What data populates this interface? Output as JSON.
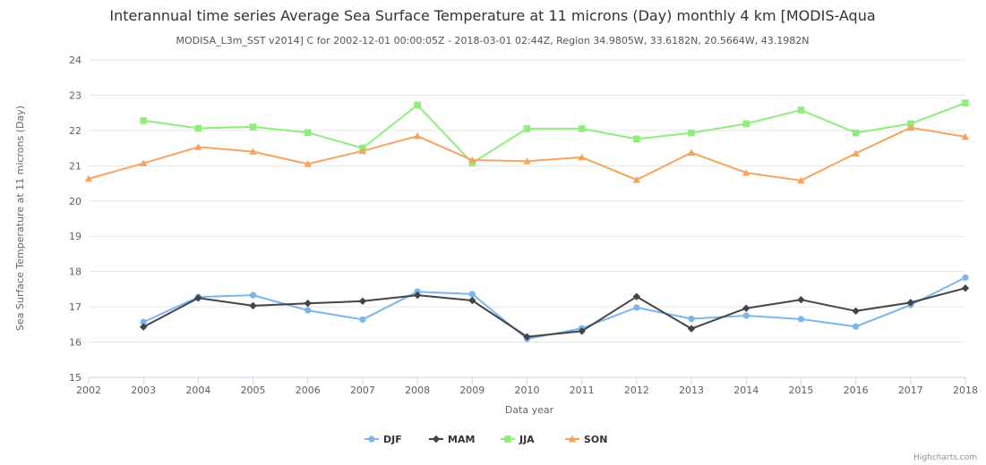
{
  "chart_data": {
    "type": "line",
    "title": "Interannual time series Average Sea Surface Temperature at 11 microns (Day) monthly 4 km [MODIS-Aqua",
    "subtitle": "MODISA_L3m_SST v2014] C for 2002-12-01 00:00:05Z - 2018-03-01 02:44Z, Region 34.9805W, 33.6182N, 20.5664W, 43.1982N",
    "xlabel": "Data year",
    "ylabel": "Sea Surface Temperature at 11 microns (Day)",
    "x": [
      2002,
      2003,
      2004,
      2005,
      2006,
      2007,
      2008,
      2009,
      2010,
      2011,
      2012,
      2013,
      2014,
      2015,
      2016,
      2017,
      2018
    ],
    "xlim": [
      2002,
      2018
    ],
    "ylim": [
      15,
      24
    ],
    "yticks": [
      15,
      16,
      17,
      18,
      19,
      20,
      21,
      22,
      23,
      24
    ],
    "grid": "horizontal",
    "legend_position": "bottom-center",
    "series": [
      {
        "name": "DJF",
        "color": "#7cb5ec",
        "marker": "circle",
        "values": [
          null,
          16.57,
          17.28,
          17.33,
          16.9,
          16.64,
          17.43,
          17.36,
          16.09,
          16.39,
          16.98,
          16.66,
          16.75,
          16.65,
          16.44,
          17.05,
          17.83
        ]
      },
      {
        "name": "MAM",
        "color": "#434348",
        "marker": "diamond",
        "values": [
          null,
          16.43,
          17.25,
          17.03,
          17.1,
          17.16,
          17.33,
          17.18,
          16.15,
          16.31,
          17.29,
          16.38,
          16.96,
          17.2,
          16.88,
          17.12,
          17.53
        ]
      },
      {
        "name": "JJA",
        "color": "#90ed7d",
        "marker": "square",
        "values": [
          null,
          22.28,
          22.06,
          22.1,
          21.94,
          21.5,
          22.72,
          21.08,
          22.05,
          22.05,
          21.76,
          21.93,
          22.19,
          22.58,
          21.93,
          22.19,
          22.78
        ]
      },
      {
        "name": "SON",
        "color": "#f7a35c",
        "marker": "triangle",
        "values": [
          20.63,
          21.07,
          21.53,
          21.4,
          21.05,
          21.42,
          21.84,
          21.16,
          21.13,
          21.24,
          20.6,
          21.37,
          20.8,
          20.58,
          21.35,
          22.08,
          21.82
        ]
      }
    ]
  },
  "credits": "Highcharts.com"
}
